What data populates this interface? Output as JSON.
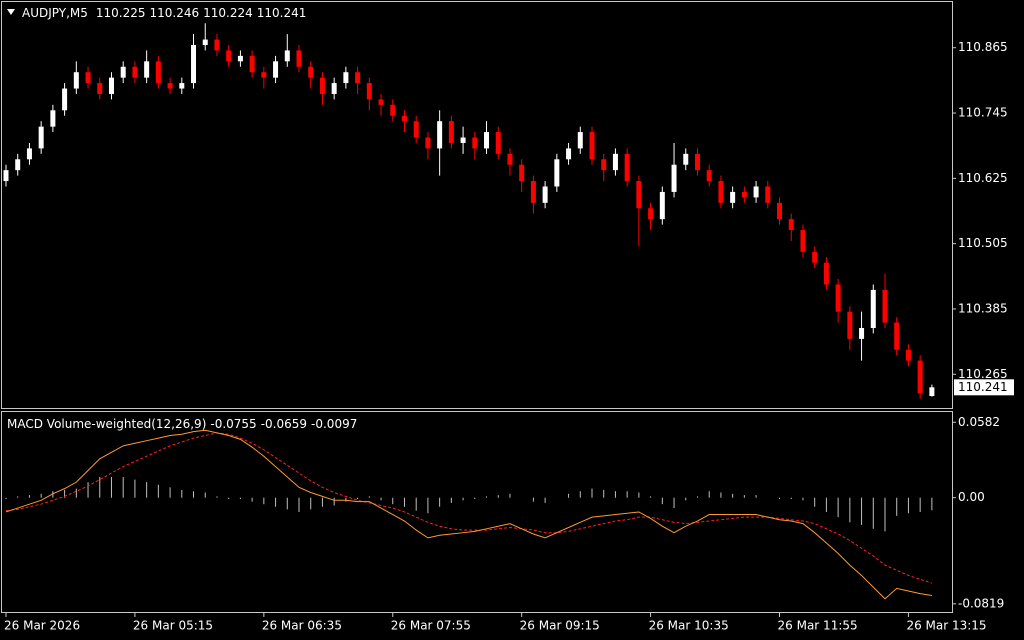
{
  "chart_data": [
    {
      "type": "candlestick",
      "title": "AUDJPY,M5",
      "open": [
        110.62,
        110.64,
        110.66,
        110.68,
        110.72,
        110.75,
        110.79,
        110.82,
        110.8,
        110.78,
        110.81,
        110.83,
        110.81,
        110.84,
        110.8,
        110.79,
        110.8,
        110.87,
        110.88,
        110.86,
        110.84,
        110.85,
        110.82,
        110.81,
        110.84,
        110.86,
        110.83,
        110.81,
        110.78,
        110.8,
        110.82,
        110.8,
        110.77,
        110.76,
        110.74,
        110.73,
        110.7,
        110.68,
        110.73,
        110.69,
        110.7,
        110.68,
        110.71,
        110.67,
        110.65,
        110.62,
        110.58,
        110.61,
        110.66,
        110.68,
        110.71,
        110.66,
        110.64,
        110.67,
        110.62,
        110.57,
        110.55,
        110.6,
        110.65,
        110.67,
        110.64,
        110.62,
        110.58,
        110.6,
        110.59,
        110.61,
        110.58,
        110.55,
        110.53,
        110.49,
        110.47,
        110.43,
        110.38,
        110.33,
        110.35,
        110.42,
        110.36,
        110.31,
        110.29,
        110.225
      ],
      "high": [
        110.65,
        110.67,
        110.69,
        110.73,
        110.76,
        110.8,
        110.84,
        110.83,
        110.81,
        110.82,
        110.84,
        110.84,
        110.86,
        110.85,
        110.81,
        110.81,
        110.89,
        110.91,
        110.89,
        110.87,
        110.86,
        110.86,
        110.83,
        110.85,
        110.89,
        110.87,
        110.84,
        110.82,
        110.81,
        110.83,
        110.83,
        110.81,
        110.78,
        110.77,
        110.75,
        110.74,
        110.71,
        110.75,
        110.74,
        110.72,
        110.71,
        110.73,
        110.72,
        110.68,
        110.66,
        110.63,
        110.62,
        110.67,
        110.69,
        110.72,
        110.72,
        110.67,
        110.68,
        110.68,
        110.63,
        110.58,
        110.61,
        110.69,
        110.68,
        110.68,
        110.65,
        110.63,
        110.61,
        110.61,
        110.62,
        110.62,
        110.59,
        110.56,
        110.54,
        110.5,
        110.48,
        110.44,
        110.39,
        110.38,
        110.43,
        110.45,
        110.37,
        110.32,
        110.3,
        110.246
      ],
      "low": [
        110.61,
        110.63,
        110.65,
        110.67,
        110.71,
        110.74,
        110.78,
        110.79,
        110.77,
        110.77,
        110.8,
        110.8,
        110.8,
        110.79,
        110.78,
        110.78,
        110.79,
        110.86,
        110.85,
        110.83,
        110.83,
        110.81,
        110.79,
        110.8,
        110.83,
        110.82,
        110.79,
        110.76,
        110.77,
        110.79,
        110.78,
        110.75,
        110.74,
        110.73,
        110.71,
        110.69,
        110.66,
        110.63,
        110.68,
        110.67,
        110.66,
        110.67,
        110.66,
        110.63,
        110.6,
        110.56,
        110.57,
        110.6,
        110.65,
        110.67,
        110.65,
        110.62,
        110.63,
        110.61,
        110.5,
        110.53,
        110.54,
        110.59,
        110.64,
        110.63,
        110.61,
        110.57,
        110.57,
        110.58,
        110.58,
        110.57,
        110.54,
        110.51,
        110.48,
        110.46,
        110.42,
        110.36,
        110.31,
        110.29,
        110.34,
        110.35,
        110.3,
        110.28,
        110.22,
        110.224
      ],
      "close": [
        110.64,
        110.66,
        110.68,
        110.72,
        110.75,
        110.79,
        110.82,
        110.8,
        110.78,
        110.81,
        110.83,
        110.81,
        110.84,
        110.8,
        110.79,
        110.8,
        110.87,
        110.88,
        110.86,
        110.84,
        110.85,
        110.82,
        110.81,
        110.84,
        110.86,
        110.83,
        110.81,
        110.78,
        110.8,
        110.82,
        110.8,
        110.77,
        110.76,
        110.74,
        110.73,
        110.7,
        110.68,
        110.73,
        110.69,
        110.7,
        110.68,
        110.71,
        110.67,
        110.65,
        110.62,
        110.58,
        110.61,
        110.66,
        110.68,
        110.71,
        110.66,
        110.64,
        110.67,
        110.62,
        110.57,
        110.55,
        110.6,
        110.65,
        110.67,
        110.64,
        110.62,
        110.58,
        110.6,
        110.59,
        110.61,
        110.58,
        110.55,
        110.53,
        110.49,
        110.47,
        110.43,
        110.38,
        110.33,
        110.35,
        110.42,
        110.36,
        110.31,
        110.29,
        110.23,
        110.241
      ],
      "up_color": "#ffffff",
      "down_color": "#ff0000",
      "ylim": [
        110.203,
        110.949
      ],
      "yticks": [
        110.865,
        110.745,
        110.625,
        110.505,
        110.385,
        110.265
      ]
    },
    {
      "type": "macd",
      "title": "MACD Volume-weighted(12,26,9)",
      "categories": [
        "26 Mar 2026",
        null,
        null,
        null,
        null,
        null,
        null,
        null,
        null,
        null,
        null,
        "26 Mar 05:15",
        null,
        null,
        null,
        null,
        null,
        null,
        null,
        null,
        null,
        null,
        "26 Mar 06:35",
        null,
        null,
        null,
        null,
        null,
        null,
        null,
        null,
        null,
        null,
        "26 Mar 07:55",
        null,
        null,
        null,
        null,
        null,
        null,
        null,
        null,
        null,
        null,
        "26 Mar 09:15",
        null,
        null,
        null,
        null,
        null,
        null,
        null,
        null,
        null,
        null,
        "26 Mar 10:35",
        null,
        null,
        null,
        null,
        null,
        null,
        null,
        null,
        null,
        null,
        "26 Mar 11:55",
        null,
        null,
        null,
        null,
        null,
        null,
        null,
        null,
        null,
        null,
        "26 Mar 13:15",
        null,
        null
      ],
      "macd": {
        "color": "#ff9933",
        "values": [
          -0.011,
          -0.008,
          -0.005,
          -0.002,
          0.003,
          0.007,
          0.012,
          0.021,
          0.03,
          0.035,
          0.04,
          0.042,
          0.044,
          0.046,
          0.048,
          0.049,
          0.051,
          0.052,
          0.05,
          0.048,
          0.045,
          0.039,
          0.032,
          0.024,
          0.016,
          0.008,
          0.004,
          0.001,
          -0.002,
          -0.002,
          -0.003,
          -0.003,
          -0.008,
          -0.013,
          -0.018,
          -0.025,
          -0.031,
          -0.029,
          -0.028,
          -0.027,
          -0.026,
          -0.024,
          -0.022,
          -0.02,
          -0.024,
          -0.028,
          -0.031,
          -0.027,
          -0.023,
          -0.019,
          -0.015,
          -0.014,
          -0.013,
          -0.012,
          -0.011,
          -0.016,
          -0.022,
          -0.027,
          -0.022,
          -0.018,
          -0.013,
          -0.013,
          -0.013,
          -0.013,
          -0.013,
          -0.015,
          -0.017,
          -0.018,
          -0.02,
          -0.027,
          -0.035,
          -0.043,
          -0.052,
          -0.06,
          -0.069,
          -0.078,
          -0.07,
          -0.072,
          -0.074,
          -0.0755
        ]
      },
      "signal": {
        "color": "#ff2020",
        "values": [
          -0.01,
          -0.009,
          -0.007,
          -0.005,
          -0.002,
          0.001,
          0.005,
          0.009,
          0.014,
          0.019,
          0.024,
          0.028,
          0.032,
          0.036,
          0.04,
          0.043,
          0.046,
          0.048,
          0.05,
          0.049,
          0.046,
          0.042,
          0.037,
          0.031,
          0.025,
          0.019,
          0.013,
          0.008,
          0.004,
          0.001,
          -0.002,
          -0.004,
          -0.006,
          -0.008,
          -0.011,
          -0.015,
          -0.019,
          -0.022,
          -0.024,
          -0.025,
          -0.025,
          -0.025,
          -0.024,
          -0.023,
          -0.024,
          -0.025,
          -0.027,
          -0.027,
          -0.026,
          -0.024,
          -0.022,
          -0.02,
          -0.018,
          -0.017,
          -0.015,
          -0.015,
          -0.017,
          -0.019,
          -0.02,
          -0.019,
          -0.018,
          -0.017,
          -0.016,
          -0.015,
          -0.015,
          -0.015,
          -0.016,
          -0.017,
          -0.018,
          -0.02,
          -0.024,
          -0.028,
          -0.033,
          -0.039,
          -0.045,
          -0.052,
          -0.056,
          -0.06,
          -0.063,
          -0.0659
        ]
      },
      "histogram": {
        "color": "#c0c0c0",
        "values": [
          -0.001,
          0.001,
          0.002,
          0.003,
          0.005,
          0.006,
          0.007,
          0.012,
          0.016,
          0.016,
          0.016,
          0.014,
          0.012,
          0.01,
          0.008,
          0.006,
          0.005,
          0.004,
          0.001,
          -0.001,
          -0.001,
          -0.003,
          -0.005,
          -0.007,
          -0.009,
          -0.011,
          -0.009,
          -0.007,
          -0.006,
          -0.003,
          -0.001,
          0.001,
          -0.002,
          -0.005,
          -0.007,
          -0.01,
          -0.012,
          -0.007,
          -0.004,
          -0.002,
          -0.001,
          0.001,
          0.002,
          0.003,
          0.0,
          -0.003,
          -0.004,
          0.0,
          0.003,
          0.005,
          0.007,
          0.006,
          0.005,
          0.005,
          0.004,
          0.001,
          -0.005,
          -0.008,
          -0.002,
          0.001,
          0.005,
          0.004,
          0.003,
          0.002,
          0.002,
          0.0,
          -0.001,
          -0.001,
          -0.002,
          -0.007,
          -0.011,
          -0.015,
          -0.019,
          -0.021,
          -0.024,
          -0.026,
          -0.014,
          -0.012,
          -0.011,
          -0.0097
        ]
      },
      "ylim": [
        -0.0882,
        0.0669
      ],
      "yticks": [
        0.0582,
        {
          "value": 0,
          "label": "0.00"
        },
        -0.0819
      ]
    }
  ]
}
